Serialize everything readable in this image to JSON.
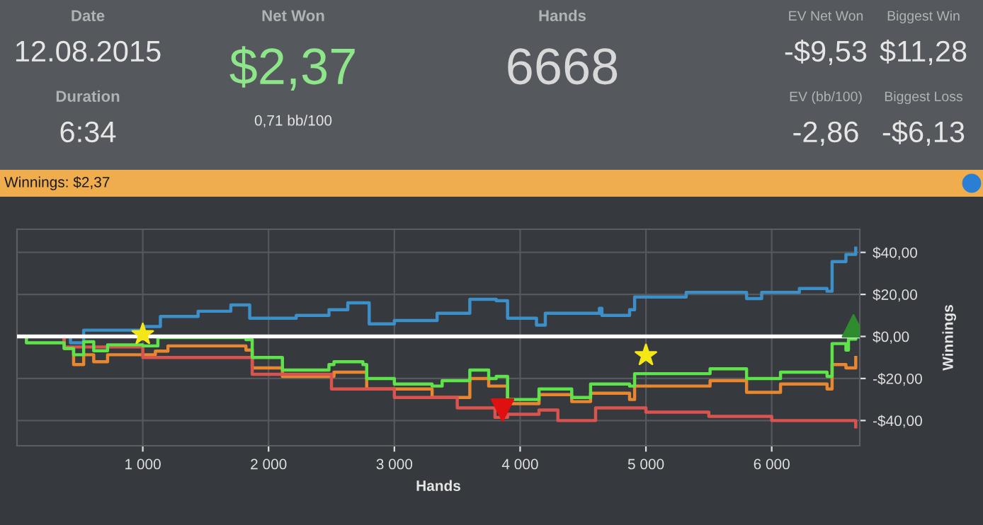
{
  "chart_data": [
    {
      "type": "other",
      "annotations": [
        "Date",
        "12.08.2015",
        "Duration",
        "6:34",
        "Net Won",
        "$2,37",
        "0,71 bb/100",
        "Hands",
        "6668",
        "EV Net Won",
        "-$9,53",
        "EV (bb/100)",
        "-2,86",
        "Biggest Win",
        "$11,28",
        "Biggest Loss",
        "-$6,13"
      ]
    },
    {
      "type": "step",
      "title": "Winnings: $2,37",
      "xlabel": "Hands",
      "ylabel": "Winnings",
      "xlim": [
        0,
        6700
      ],
      "ylim": [
        -52,
        51
      ],
      "xticks": [
        {
          "value": 1000,
          "label": "1 000"
        },
        {
          "value": 2000,
          "label": "2 000"
        },
        {
          "value": 3000,
          "label": "3 000"
        },
        {
          "value": 4000,
          "label": "4 000"
        },
        {
          "value": 5000,
          "label": "5 000"
        },
        {
          "value": 6000,
          "label": "6 000"
        }
      ],
      "yticks": [
        {
          "value": -40,
          "label": "-$40,00"
        },
        {
          "value": -20,
          "label": "-$20,00"
        },
        {
          "value": 0,
          "label": "$0,00"
        },
        {
          "value": 20,
          "label": "$20,00"
        },
        {
          "value": 40,
          "label": "$40,00"
        }
      ],
      "grid": true,
      "line_style": "solid",
      "ref_lines": [
        {
          "axis": "y",
          "value": 0,
          "color": "#ffffff"
        }
      ],
      "series": [
        {
          "color": "#3c8fc8",
          "x": [
            0,
            425,
            530,
            1000,
            1140,
            1440,
            1700,
            1850,
            2220,
            2480,
            2630,
            2800,
            3000,
            3340,
            3600,
            3810,
            3900,
            4130,
            4200,
            4630,
            4650,
            4870,
            4910,
            5320,
            5800,
            5920,
            6220,
            6440,
            6480,
            6590,
            6668
          ],
          "values": [
            0,
            -3,
            3,
            4.7,
            9.5,
            12,
            15,
            8.7,
            10,
            12.7,
            16,
            6,
            7.6,
            11,
            17.7,
            17,
            8.7,
            5.4,
            11,
            13.4,
            10,
            12.7,
            18.8,
            21,
            18,
            21,
            22.8,
            21.5,
            35.6,
            39,
            42
          ]
        },
        {
          "color": "#e8872f",
          "x": [
            0,
            375,
            450,
            530,
            610,
            720,
            1100,
            1200,
            1820,
            1870,
            2110,
            2520,
            2780,
            3300,
            3600,
            3750,
            3900,
            4150,
            4410,
            4560,
            4870,
            4910,
            5510,
            5800,
            6070,
            6440,
            6480,
            6590,
            6668
          ],
          "values": [
            0,
            -5.7,
            -13.4,
            -8.7,
            -12,
            -8.7,
            -7,
            -4.5,
            -6.5,
            -15,
            -19,
            -17,
            -25,
            -29,
            -20,
            -23.6,
            -32,
            -27.7,
            -31,
            -27,
            -30,
            -23.6,
            -21,
            -26.6,
            -22.6,
            -25,
            -13.4,
            -15,
            -10
          ]
        },
        {
          "color": "#d9534f",
          "x": [
            0,
            375,
            1000,
            1870,
            2500,
            3000,
            3500,
            3800,
            3900,
            4150,
            4300,
            4600,
            5000,
            5500,
            6000,
            6668
          ],
          "values": [
            0,
            -5,
            -10,
            -18,
            -25,
            -29,
            -34,
            -38.5,
            -37,
            -35,
            -40,
            -34,
            -36,
            -38,
            -40,
            -43
          ]
        },
        {
          "color": "#5fe34a",
          "x": [
            0,
            75,
            375,
            450,
            530,
            610,
            720,
            1000,
            1120,
            1820,
            1870,
            2110,
            2480,
            2520,
            2750,
            2780,
            3000,
            3300,
            3380,
            3600,
            3750,
            3810,
            3900,
            4150,
            4410,
            4560,
            4870,
            4910,
            5510,
            5800,
            6070,
            6440,
            6480,
            6590,
            6610,
            6668
          ],
          "values": [
            0,
            -3,
            -5.7,
            -8.7,
            -2.5,
            -6.8,
            -4,
            -4.5,
            -0.5,
            -1.5,
            -10,
            -16,
            -13.4,
            -12,
            -13.4,
            -20,
            -22.6,
            -23.6,
            -21,
            -16,
            -20,
            -19,
            -30,
            -25,
            -29,
            -22.6,
            -23.6,
            -17.7,
            -15.4,
            -20,
            -17,
            -19,
            -3.4,
            -6.5,
            -1.3,
            2.4
          ]
        },
        {
          "type": "scatter",
          "marker": "star",
          "color": "#f5e616",
          "x": [
            1000,
            5000
          ],
          "values": [
            1,
            -9
          ]
        },
        {
          "type": "scatter",
          "marker": "triangle_down",
          "color": "#e01010",
          "x": [
            3860
          ],
          "values": [
            -35
          ]
        },
        {
          "type": "scatter",
          "marker": "triangle",
          "color": "#2e8b2e",
          "x": [
            6650
          ],
          "values": [
            5
          ]
        }
      ]
    }
  ]
}
